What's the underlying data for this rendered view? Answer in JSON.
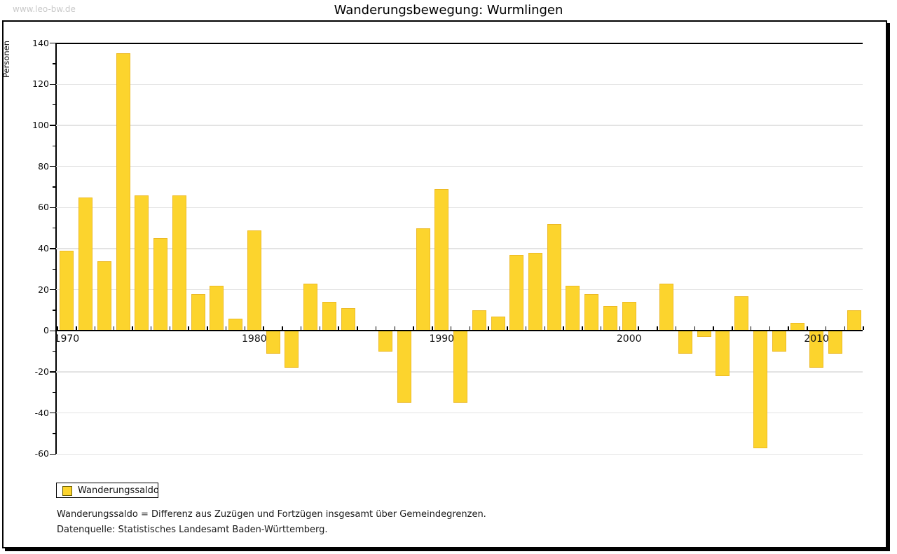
{
  "watermark": "www.leo-bw.de",
  "title": "Wanderungsbewegung: Wurmlingen",
  "chart_data": {
    "type": "bar",
    "title": "Wanderungsbewegung: Wurmlingen",
    "ylabel": "Personen",
    "ylim": [
      -60,
      140
    ],
    "ytick_step": 20,
    "ytick_minor_step": 10,
    "grid": "horizontal",
    "legend_position": "bottom-left",
    "bar_color": "#fcd42d",
    "series_name": "Wanderungssaldo",
    "x": [
      1970,
      1971,
      1972,
      1973,
      1974,
      1975,
      1976,
      1977,
      1978,
      1979,
      1980,
      1981,
      1982,
      1983,
      1984,
      1985,
      1986,
      1987,
      1988,
      1989,
      1990,
      1991,
      1992,
      1993,
      1994,
      1995,
      1996,
      1997,
      1998,
      1999,
      2000,
      2001,
      2002,
      2003,
      2004,
      2005,
      2006,
      2007,
      2008,
      2009,
      2010,
      2011,
      2012
    ],
    "values": [
      39,
      65,
      34,
      135,
      66,
      45,
      66,
      18,
      22,
      6,
      49,
      -11,
      -18,
      23,
      14,
      11,
      0,
      -10,
      -35,
      50,
      69,
      -35,
      10,
      7,
      37,
      38,
      52,
      22,
      18,
      12,
      14,
      0,
      23,
      -11,
      -3,
      -22,
      17,
      -57,
      -10,
      4,
      -18,
      -11,
      10
    ],
    "x_axis_labels": [
      "1970",
      "1980",
      "1990",
      "2000",
      "2010"
    ]
  },
  "legend": {
    "label": "Wanderungssaldo",
    "swatch_color": "#fcd42d"
  },
  "footnotes": [
    "Wanderungssaldo = Differenz aus Zuzügen und Fortzügen insgesamt über Gemeindegrenzen.",
    "Datenquelle: Statistisches Landesamt Baden-Württemberg."
  ]
}
